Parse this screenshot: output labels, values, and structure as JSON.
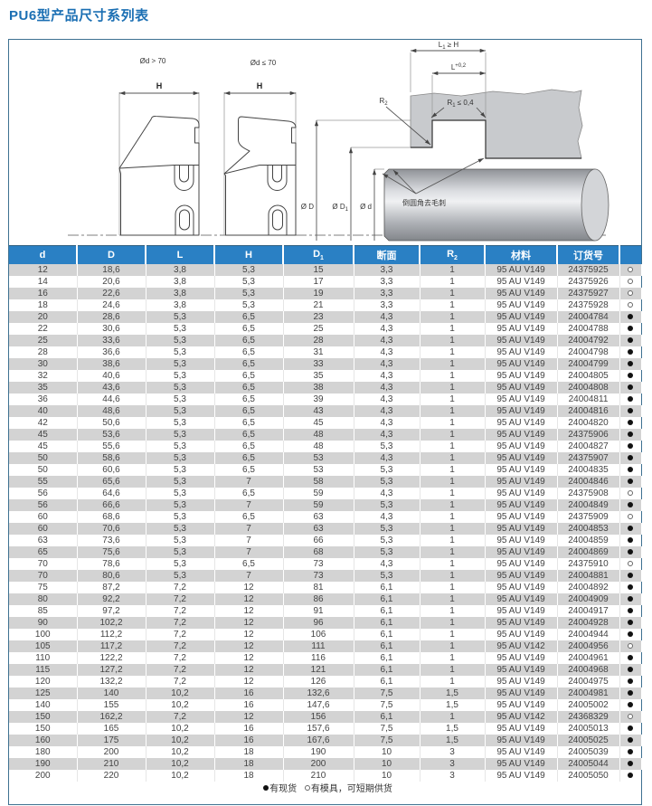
{
  "page_title": "PU6型产品尺寸系列表",
  "colors": {
    "title_blue": "#1b6fb3",
    "header_blue": "#2a80c4",
    "row_gray": "#d3d3d3",
    "frame_border": "#3e7191"
  },
  "diagram": {
    "profile_left_label": "Ød > 70",
    "profile_right_label": "Ød ≤ 70",
    "h_left": "H",
    "h_right": "H",
    "dim_l1": {
      "main": "L",
      "sub": "1",
      "rest": " ≥ H"
    },
    "dim_l": {
      "main": "L",
      "sup": "+0,2"
    },
    "dim_r1": {
      "main": "R",
      "sub": "1",
      "rest": " ≤ 0,4"
    },
    "dim_r2": {
      "main": "R",
      "sub": "2"
    },
    "dim_D": "Ø D",
    "dim_D1": {
      "main": "Ø D",
      "sub": "1"
    },
    "dim_d": "Ø d",
    "deburr_note": "倒圆角去毛刺"
  },
  "table": {
    "columns": [
      {
        "label": "d"
      },
      {
        "label": "D"
      },
      {
        "label": "L"
      },
      {
        "label": "H"
      },
      {
        "label": "D",
        "sub": "1"
      },
      {
        "label": "断面"
      },
      {
        "label": "R",
        "sub": "2"
      },
      {
        "label": "材料"
      },
      {
        "label": "订货号"
      },
      {
        "label": ""
      }
    ],
    "rows": [
      [
        "12",
        "18,6",
        "3,8",
        "5,3",
        "15",
        "3,3",
        "1",
        "95 AU V149",
        "24375925",
        "outline"
      ],
      [
        "14",
        "20,6",
        "3,8",
        "5,3",
        "17",
        "3,3",
        "1",
        "95 AU V149",
        "24375926",
        "outline"
      ],
      [
        "16",
        "22,6",
        "3,8",
        "5,3",
        "19",
        "3,3",
        "1",
        "95 AU V149",
        "24375927",
        "outline"
      ],
      [
        "18",
        "24,6",
        "3,8",
        "5,3",
        "21",
        "3,3",
        "1",
        "95 AU V149",
        "24375928",
        "outline"
      ],
      [
        "20",
        "28,6",
        "5,3",
        "6,5",
        "23",
        "4,3",
        "1",
        "95 AU V149",
        "24004784",
        "filled"
      ],
      [
        "22",
        "30,6",
        "5,3",
        "6,5",
        "25",
        "4,3",
        "1",
        "95 AU V149",
        "24004788",
        "filled"
      ],
      [
        "25",
        "33,6",
        "5,3",
        "6,5",
        "28",
        "4,3",
        "1",
        "95 AU V149",
        "24004792",
        "filled"
      ],
      [
        "28",
        "36,6",
        "5,3",
        "6,5",
        "31",
        "4,3",
        "1",
        "95 AU V149",
        "24004798",
        "filled"
      ],
      [
        "30",
        "38,6",
        "5,3",
        "6,5",
        "33",
        "4,3",
        "1",
        "95 AU V149",
        "24004799",
        "filled"
      ],
      [
        "32",
        "40,6",
        "5,3",
        "6,5",
        "35",
        "4,3",
        "1",
        "95 AU V149",
        "24004805",
        "filled"
      ],
      [
        "35",
        "43,6",
        "5,3",
        "6,5",
        "38",
        "4,3",
        "1",
        "95 AU V149",
        "24004808",
        "filled"
      ],
      [
        "36",
        "44,6",
        "5,3",
        "6,5",
        "39",
        "4,3",
        "1",
        "95 AU V149",
        "24004811",
        "filled"
      ],
      [
        "40",
        "48,6",
        "5,3",
        "6,5",
        "43",
        "4,3",
        "1",
        "95 AU V149",
        "24004816",
        "filled"
      ],
      [
        "42",
        "50,6",
        "5,3",
        "6,5",
        "45",
        "4,3",
        "1",
        "95 AU V149",
        "24004820",
        "filled"
      ],
      [
        "45",
        "53,6",
        "5,3",
        "6,5",
        "48",
        "4,3",
        "1",
        "95 AU V149",
        "24375906",
        "filled"
      ],
      [
        "45",
        "55,6",
        "5,3",
        "6,5",
        "48",
        "5,3",
        "1",
        "95 AU V149",
        "24004827",
        "filled"
      ],
      [
        "50",
        "58,6",
        "5,3",
        "6,5",
        "53",
        "4,3",
        "1",
        "95 AU V149",
        "24375907",
        "filled"
      ],
      [
        "50",
        "60,6",
        "5,3",
        "6,5",
        "53",
        "5,3",
        "1",
        "95 AU V149",
        "24004835",
        "filled"
      ],
      [
        "55",
        "65,6",
        "5,3",
        "7",
        "58",
        "5,3",
        "1",
        "95 AU V149",
        "24004846",
        "filled"
      ],
      [
        "56",
        "64,6",
        "5,3",
        "6,5",
        "59",
        "4,3",
        "1",
        "95 AU V149",
        "24375908",
        "outline"
      ],
      [
        "56",
        "66,6",
        "5,3",
        "7",
        "59",
        "5,3",
        "1",
        "95 AU V149",
        "24004849",
        "filled"
      ],
      [
        "60",
        "68,6",
        "5,3",
        "6,5",
        "63",
        "4,3",
        "1",
        "95 AU V149",
        "24375909",
        "outline"
      ],
      [
        "60",
        "70,6",
        "5,3",
        "7",
        "63",
        "5,3",
        "1",
        "95 AU V149",
        "24004853",
        "filled"
      ],
      [
        "63",
        "73,6",
        "5,3",
        "7",
        "66",
        "5,3",
        "1",
        "95 AU V149",
        "24004859",
        "filled"
      ],
      [
        "65",
        "75,6",
        "5,3",
        "7",
        "68",
        "5,3",
        "1",
        "95 AU V149",
        "24004869",
        "filled"
      ],
      [
        "70",
        "78,6",
        "5,3",
        "6,5",
        "73",
        "4,3",
        "1",
        "95 AU V149",
        "24375910",
        "outline"
      ],
      [
        "70",
        "80,6",
        "5,3",
        "7",
        "73",
        "5,3",
        "1",
        "95 AU V149",
        "24004881",
        "filled"
      ],
      [
        "75",
        "87,2",
        "7,2",
        "12",
        "81",
        "6,1",
        "1",
        "95 AU V149",
        "24004892",
        "filled"
      ],
      [
        "80",
        "92,2",
        "7,2",
        "12",
        "86",
        "6,1",
        "1",
        "95 AU V149",
        "24004909",
        "filled"
      ],
      [
        "85",
        "97,2",
        "7,2",
        "12",
        "91",
        "6,1",
        "1",
        "95 AU V149",
        "24004917",
        "filled"
      ],
      [
        "90",
        "102,2",
        "7,2",
        "12",
        "96",
        "6,1",
        "1",
        "95 AU V149",
        "24004928",
        "filled"
      ],
      [
        "100",
        "112,2",
        "7,2",
        "12",
        "106",
        "6,1",
        "1",
        "95 AU V149",
        "24004944",
        "filled"
      ],
      [
        "105",
        "117,2",
        "7,2",
        "12",
        "111",
        "6,1",
        "1",
        "95 AU V142",
        "24004956",
        "outline"
      ],
      [
        "110",
        "122,2",
        "7,2",
        "12",
        "116",
        "6,1",
        "1",
        "95 AU V149",
        "24004961",
        "filled"
      ],
      [
        "115",
        "127,2",
        "7,2",
        "12",
        "121",
        "6,1",
        "1",
        "95 AU V149",
        "24004968",
        "filled"
      ],
      [
        "120",
        "132,2",
        "7,2",
        "12",
        "126",
        "6,1",
        "1",
        "95 AU V149",
        "24004975",
        "filled"
      ],
      [
        "125",
        "140",
        "10,2",
        "16",
        "132,6",
        "7,5",
        "1,5",
        "95 AU V149",
        "24004981",
        "filled"
      ],
      [
        "140",
        "155",
        "10,2",
        "16",
        "147,6",
        "7,5",
        "1,5",
        "95 AU V149",
        "24005002",
        "filled"
      ],
      [
        "150",
        "162,2",
        "7,2",
        "12",
        "156",
        "6,1",
        "1",
        "95 AU V142",
        "24368329",
        "outline"
      ],
      [
        "150",
        "165",
        "10,2",
        "16",
        "157,6",
        "7,5",
        "1,5",
        "95 AU V149",
        "24005013",
        "filled"
      ],
      [
        "160",
        "175",
        "10,2",
        "16",
        "167,6",
        "7,5",
        "1,5",
        "95 AU V149",
        "24005025",
        "filled"
      ],
      [
        "180",
        "200",
        "10,2",
        "18",
        "190",
        "10",
        "3",
        "95 AU V149",
        "24005039",
        "filled"
      ],
      [
        "190",
        "210",
        "10,2",
        "18",
        "200",
        "10",
        "3",
        "95 AU V149",
        "24005044",
        "filled"
      ],
      [
        "200",
        "220",
        "10,2",
        "18",
        "210",
        "10",
        "3",
        "95 AU V149",
        "24005050",
        "filled"
      ]
    ]
  },
  "legend": {
    "items": [
      {
        "status": "filled",
        "label": "有现货"
      },
      {
        "status": "outline",
        "label": "有模具，可短期供货"
      }
    ]
  }
}
